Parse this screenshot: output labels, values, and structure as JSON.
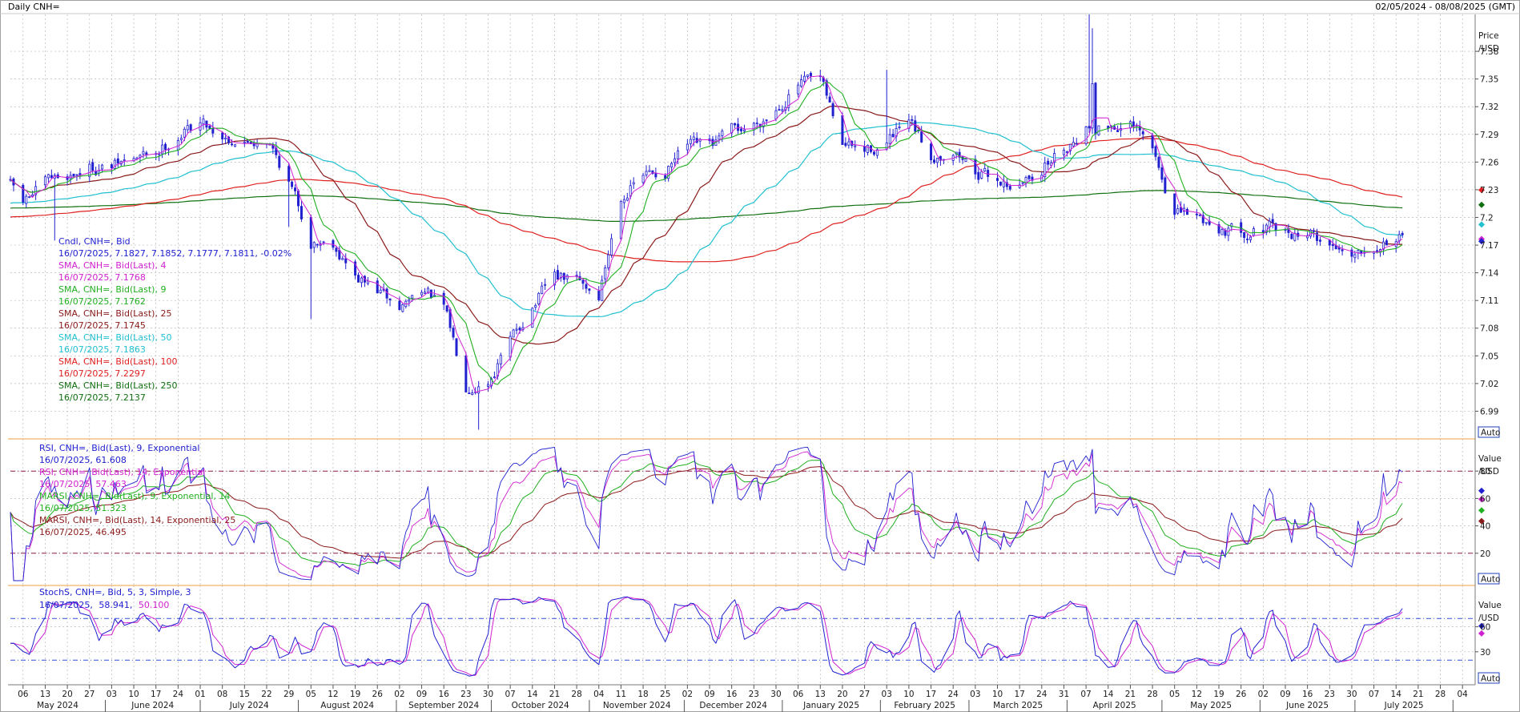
{
  "window": {
    "title": "Daily CNH=",
    "range": "02/05/2024 - 08/08/2025 (GMT)"
  },
  "colors": {
    "candle": "#2020d0",
    "sma4": "#d020d0",
    "sma9": "#20b020",
    "sma25": "#8b1a1a",
    "sma50": "#20c0d0",
    "sma100": "#e02020",
    "sma250": "#107010",
    "rsi9": "#2020d0",
    "rsi14": "#d020d0",
    "marsi9": "#20b020",
    "marsi14": "#8b1a1a",
    "stoch_k": "#2020d0",
    "stoch_d": "#d020d0",
    "grid": "#b8b8b8",
    "panel_border": "#f0a040"
  },
  "x_axis": {
    "day_ticks": [
      "06",
      "13",
      "20",
      "27",
      "03",
      "10",
      "17",
      "24",
      "01",
      "08",
      "15",
      "22",
      "29",
      "05",
      "12",
      "19",
      "26",
      "02",
      "09",
      "16",
      "23",
      "30",
      "07",
      "14",
      "21",
      "28",
      "04",
      "11",
      "18",
      "25",
      "02",
      "09",
      "16",
      "23",
      "30",
      "06",
      "13",
      "20",
      "27",
      "03",
      "10",
      "17",
      "24",
      "03",
      "10",
      "17",
      "24",
      "31",
      "07",
      "14",
      "21",
      "28",
      "05",
      "12",
      "19",
      "26",
      "02",
      "09",
      "16",
      "23",
      "30",
      "07",
      "14",
      "21",
      "28",
      "04"
    ],
    "months": [
      "May 2024",
      "June 2024",
      "July 2024",
      "August 2024",
      "September 2024",
      "October 2024",
      "November 2024",
      "December 2024",
      "January 2025",
      "February 2025",
      "March 2025",
      "April 2025",
      "May 2025",
      "June 2025",
      "July 2025"
    ]
  },
  "price_panel": {
    "unit_label_1": "Price",
    "unit_label_2": "/USD",
    "auto_label": "Auto",
    "y_ticks": [
      "7.38",
      "7.35",
      "7.32",
      "7.29",
      "7.26",
      "7.23",
      "7.2",
      "7.17",
      "7.14",
      "7.11",
      "7.08",
      "7.05",
      "7.02",
      "6.99"
    ],
    "legend": [
      {
        "name": "Cndl, CNH=, Bid",
        "values": "16/07/2025, 7.1827, 7.1852, 7.1777, 7.1811, -0.02%",
        "color": "#2020d0"
      },
      {
        "name": "SMA, CNH=, Bid(Last),  4",
        "values": "16/07/2025, 7.1768",
        "color": "#d020d0"
      },
      {
        "name": "SMA, CNH=, Bid(Last),  9",
        "values": "16/07/2025, 7.1762",
        "color": "#20b020"
      },
      {
        "name": "SMA, CNH=, Bid(Last),  25",
        "values": "16/07/2025, 7.1745",
        "color": "#8b1a1a"
      },
      {
        "name": "SMA, CNH=, Bid(Last),  50",
        "values": "16/07/2025, 7.1863",
        "color": "#20c0d0"
      },
      {
        "name": "SMA, CNH=, Bid(Last),  100",
        "values": "16/07/2025, 7.2297",
        "color": "#e02020"
      },
      {
        "name": "SMA, CNH=, Bid(Last),  250",
        "values": "16/07/2025, 7.2137",
        "color": "#107010"
      }
    ]
  },
  "rsi_panel": {
    "unit_label_1": "Value",
    "unit_label_2": "/USD",
    "auto_label": "Auto",
    "y_ticks": [
      "80",
      "60",
      "40",
      "20"
    ],
    "legend": [
      {
        "name": "RSI, CNH=, Bid(Last),  9, Exponential",
        "values": "16/07/2025, 61.608",
        "color": "#2020d0"
      },
      {
        "name": "RSI, CNH=, Bid(Last),  14, Exponential",
        "values": "16/07/2025, 57.463",
        "color": "#d020d0"
      },
      {
        "name": "MARSI, CNH=, Bid(Last),  9, Exponential, 14",
        "values": "16/07/2025, 51.323",
        "color": "#20b020"
      },
      {
        "name": "MARSI, CNH=, Bid(Last),  14, Exponential, 25",
        "values": "16/07/2025, 46.495",
        "color": "#8b1a1a"
      }
    ]
  },
  "stoch_panel": {
    "unit_label_1": "Value",
    "unit_label_2": "/USD",
    "auto_label": "Auto",
    "y_ticks": [
      "60",
      "30"
    ],
    "legend_name": "StochS, CNH=, Bid,  5, 3, Simple, 3",
    "legend_date": "16/07/2025,",
    "legend_k": "58.941,",
    "legend_d": "50.100"
  },
  "chart_data": {
    "type": "candlestick",
    "title": "Daily CNH=",
    "date_range": "02/05/2024 - 08/08/2025 (GMT)",
    "ylabel": "Price /USD",
    "ylim": [
      6.96,
      7.42
    ],
    "grid": true,
    "legend_position": "top-left",
    "close_series": {
      "name": "Cndl, CNH=, Bid",
      "points": [
        {
          "date": "2024-05-02",
          "value": 7.235
        },
        {
          "date": "2024-05-06",
          "value": 7.215
        },
        {
          "date": "2024-05-13",
          "value": 7.235
        },
        {
          "date": "2024-05-20",
          "value": 7.245
        },
        {
          "date": "2024-05-27",
          "value": 7.255
        },
        {
          "date": "2024-06-03",
          "value": 7.255
        },
        {
          "date": "2024-06-10",
          "value": 7.262
        },
        {
          "date": "2024-06-17",
          "value": 7.27
        },
        {
          "date": "2024-06-24",
          "value": 7.29
        },
        {
          "date": "2024-07-01",
          "value": 7.305
        },
        {
          "date": "2024-07-08",
          "value": 7.29
        },
        {
          "date": "2024-07-15",
          "value": 7.282
        },
        {
          "date": "2024-07-22",
          "value": 7.288
        },
        {
          "date": "2024-07-29",
          "value": 7.24
        },
        {
          "date": "2024-08-05",
          "value": 7.175
        },
        {
          "date": "2024-08-12",
          "value": 7.175
        },
        {
          "date": "2024-08-19",
          "value": 7.135
        },
        {
          "date": "2024-08-26",
          "value": 7.12
        },
        {
          "date": "2024-09-02",
          "value": 7.1
        },
        {
          "date": "2024-09-09",
          "value": 7.125
        },
        {
          "date": "2024-09-16",
          "value": 7.1
        },
        {
          "date": "2024-09-23",
          "value": 7.02
        },
        {
          "date": "2024-09-30",
          "value": 7.025
        },
        {
          "date": "2024-10-07",
          "value": 7.065
        },
        {
          "date": "2024-10-14",
          "value": 7.105
        },
        {
          "date": "2024-10-21",
          "value": 7.135
        },
        {
          "date": "2024-10-28",
          "value": 7.13
        },
        {
          "date": "2024-11-04",
          "value": 7.115
        },
        {
          "date": "2024-11-11",
          "value": 7.225
        },
        {
          "date": "2024-11-18",
          "value": 7.245
        },
        {
          "date": "2024-11-25",
          "value": 7.25
        },
        {
          "date": "2024-12-02",
          "value": 7.275
        },
        {
          "date": "2024-12-09",
          "value": 7.275
        },
        {
          "date": "2024-12-16",
          "value": 7.29
        },
        {
          "date": "2024-12-23",
          "value": 7.3
        },
        {
          "date": "2024-12-30",
          "value": 7.32
        },
        {
          "date": "2025-01-06",
          "value": 7.345
        },
        {
          "date": "2025-01-13",
          "value": 7.345
        },
        {
          "date": "2025-01-20",
          "value": 7.28
        },
        {
          "date": "2025-01-27",
          "value": 7.27
        },
        {
          "date": "2025-02-03",
          "value": 7.28
        },
        {
          "date": "2025-02-10",
          "value": 7.3
        },
        {
          "date": "2025-02-17",
          "value": 7.265
        },
        {
          "date": "2025-02-24",
          "value": 7.275
        },
        {
          "date": "2025-03-03",
          "value": 7.25
        },
        {
          "date": "2025-03-10",
          "value": 7.24
        },
        {
          "date": "2025-03-17",
          "value": 7.235
        },
        {
          "date": "2025-03-24",
          "value": 7.255
        },
        {
          "date": "2025-03-31",
          "value": 7.275
        },
        {
          "date": "2025-04-07",
          "value": 7.3
        },
        {
          "date": "2025-04-14",
          "value": 7.3
        },
        {
          "date": "2025-04-21",
          "value": 7.3
        },
        {
          "date": "2025-04-28",
          "value": 7.27
        },
        {
          "date": "2025-05-05",
          "value": 7.205
        },
        {
          "date": "2025-05-12",
          "value": 7.2
        },
        {
          "date": "2025-05-19",
          "value": 7.19
        },
        {
          "date": "2025-05-26",
          "value": 7.185
        },
        {
          "date": "2025-06-02",
          "value": 7.19
        },
        {
          "date": "2025-06-09",
          "value": 7.18
        },
        {
          "date": "2025-06-16",
          "value": 7.185
        },
        {
          "date": "2025-06-23",
          "value": 7.17
        },
        {
          "date": "2025-06-30",
          "value": 7.165
        },
        {
          "date": "2025-07-07",
          "value": 7.175
        },
        {
          "date": "2025-07-16",
          "value": 7.1811
        }
      ]
    },
    "extremes": {
      "high_2025_04_08": 7.42,
      "low_2024_09_27": 6.97
    },
    "series": [
      {
        "name": "SMA, CNH=, Bid(Last),  4",
        "last": 7.1768
      },
      {
        "name": "SMA, CNH=, Bid(Last),  9",
        "last": 7.1762
      },
      {
        "name": "SMA, CNH=, Bid(Last),  25",
        "last": 7.1745
      },
      {
        "name": "SMA, CNH=, Bid(Last),  50",
        "last": 7.1863
      },
      {
        "name": "SMA, CNH=, Bid(Last),  100",
        "last": 7.2297
      },
      {
        "name": "SMA, CNH=, Bid(Last),  250",
        "last": 7.2137
      }
    ],
    "indicators": {
      "rsi": {
        "ylim": [
          0,
          100
        ],
        "lines": [
          80,
          20
        ],
        "rsi9": 61.608,
        "rsi14": 57.463,
        "marsi9": 51.323,
        "marsi14": 46.495
      },
      "stochastic": {
        "ylim": [
          0,
          100
        ],
        "lines": [
          70,
          20
        ],
        "k": 58.941,
        "d": 50.1
      }
    }
  }
}
